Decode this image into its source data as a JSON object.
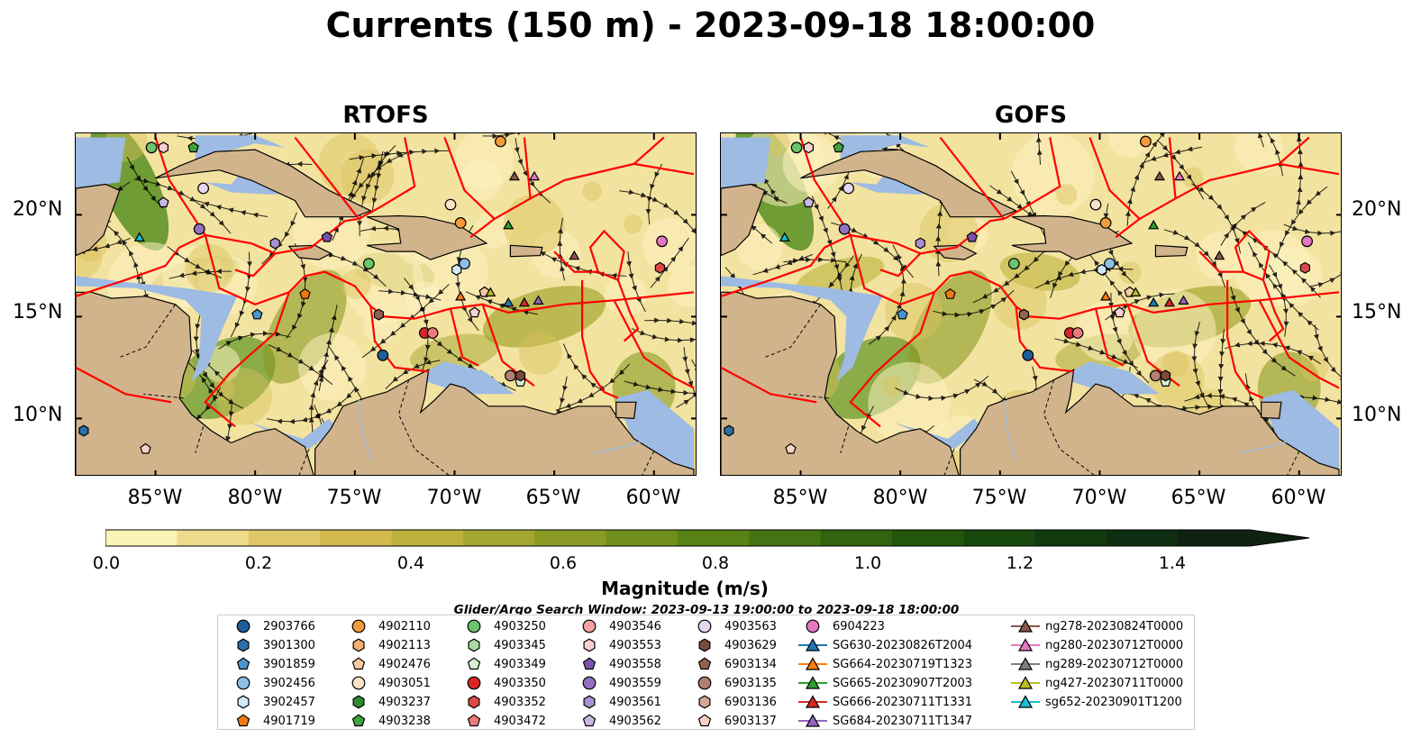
{
  "title": "Currents (150 m) - 2023-09-18 18:00:00",
  "panels": [
    {
      "title": "RTOFS"
    },
    {
      "title": "GOFS"
    }
  ],
  "lat_labels": [
    "20°N",
    "15°N",
    "10°N"
  ],
  "lon_labels": [
    "85°W",
    "80°W",
    "75°W",
    "70°W",
    "65°W",
    "60°W"
  ],
  "colorbar": {
    "label": "Magnitude (m/s)",
    "ticks": [
      "0.0",
      "0.2",
      "0.4",
      "0.6",
      "0.8",
      "1.0",
      "1.2",
      "1.4"
    ],
    "colors": [
      "#fcf3b7",
      "#eedc8c",
      "#dfc768",
      "#d1b94c",
      "#bcb23c",
      "#a4a630",
      "#8a9a24",
      "#708e1c",
      "#588116",
      "#437312",
      "#31640f",
      "#22560d",
      "#17480d",
      "#113a0f",
      "#0f2e11",
      "#0d2210"
    ]
  },
  "search_window": "Glider/Argo Search Window: 2023-09-13 19:00:00 to 2023-09-18 18:00:00",
  "legend": {
    "columns": [
      [
        {
          "label": "2903766",
          "marker": "circle",
          "color": "#1f5e96"
        },
        {
          "label": "3901300",
          "marker": "hexagon",
          "color": "#2b6ea8"
        },
        {
          "label": "3901859",
          "marker": "pentagon",
          "color": "#4a93cf"
        },
        {
          "label": "3902456",
          "marker": "circle",
          "color": "#8ebfe6"
        },
        {
          "label": "3902457",
          "marker": "hexagon",
          "color": "#d3e8f7"
        },
        {
          "label": "4901719",
          "marker": "pentagon",
          "color": "#f07a10"
        }
      ],
      [
        {
          "label": "4902110",
          "marker": "circle",
          "color": "#f39a3a"
        },
        {
          "label": "4902113",
          "marker": "hexagon",
          "color": "#f4b06e"
        },
        {
          "label": "4902476",
          "marker": "pentagon",
          "color": "#f7caa0"
        },
        {
          "label": "4903051",
          "marker": "circle",
          "color": "#fbe2c9"
        },
        {
          "label": "4903237",
          "marker": "hexagon",
          "color": "#2e8a2e"
        },
        {
          "label": "4903238",
          "marker": "pentagon",
          "color": "#3fa33f"
        }
      ],
      [
        {
          "label": "4903250",
          "marker": "circle",
          "color": "#6cc46c"
        },
        {
          "label": "4903345",
          "marker": "hexagon",
          "color": "#a5dca0"
        },
        {
          "label": "4903349",
          "marker": "pentagon",
          "color": "#d5f0cf"
        },
        {
          "label": "4903350",
          "marker": "circle",
          "color": "#d62728"
        },
        {
          "label": "4903352",
          "marker": "hexagon",
          "color": "#e04848"
        },
        {
          "label": "4903472",
          "marker": "pentagon",
          "color": "#ec7b7b"
        }
      ],
      [
        {
          "label": "4903546",
          "marker": "circle",
          "color": "#f4a3a3"
        },
        {
          "label": "4903553",
          "marker": "hexagon",
          "color": "#f8d0d0"
        },
        {
          "label": "4903558",
          "marker": "pentagon",
          "color": "#7b52ae"
        },
        {
          "label": "4903559",
          "marker": "circle",
          "color": "#9270c2"
        },
        {
          "label": "4903561",
          "marker": "hexagon",
          "color": "#ab8fd3"
        },
        {
          "label": "4903562",
          "marker": "pentagon",
          "color": "#c8b6e3"
        }
      ],
      [
        {
          "label": "4903563",
          "marker": "circle",
          "color": "#e4d8f1"
        },
        {
          "label": "4903629",
          "marker": "hexagon",
          "color": "#7a4a3c"
        },
        {
          "label": "6903134",
          "marker": "pentagon",
          "color": "#94614f"
        },
        {
          "label": "6903135",
          "marker": "circle",
          "color": "#b08070"
        },
        {
          "label": "6903136",
          "marker": "hexagon",
          "color": "#d2a896"
        },
        {
          "label": "6903137",
          "marker": "pentagon",
          "color": "#f5d2c5"
        }
      ],
      [
        {
          "label": "6904223",
          "marker": "circle",
          "color": "#e377c2"
        },
        {
          "label": "SG630-20230826T2004",
          "marker": "triangle",
          "color": "#1f77b4"
        },
        {
          "label": "SG664-20230719T1323",
          "marker": "triangle",
          "color": "#ff7f0e"
        },
        {
          "label": "SG665-20230907T2003",
          "marker": "triangle",
          "color": "#2ca02c"
        },
        {
          "label": "SG666-20230711T1331",
          "marker": "triangle",
          "color": "#d62728"
        },
        {
          "label": "SG684-20230711T1347",
          "marker": "triangle",
          "color": "#9467bd"
        }
      ],
      [
        {
          "label": "ng278-20230824T0000",
          "marker": "triangle",
          "color": "#8c564b"
        },
        {
          "label": "ng280-20230712T0000",
          "marker": "triangle",
          "color": "#e377c2"
        },
        {
          "label": "ng289-20230712T0000",
          "marker": "triangle",
          "color": "#7f7f7f"
        },
        {
          "label": "ng427-20230711T0000",
          "marker": "triangle",
          "color": "#bcbd22"
        },
        {
          "label": "sg652-20230901T1200",
          "marker": "triangle",
          "color": "#17becf"
        }
      ]
    ]
  },
  "map_colors": {
    "land": "#d2b48c",
    "shelf": "#9dbbe3",
    "eez": "#ff0000",
    "streamline": "#000000"
  }
}
